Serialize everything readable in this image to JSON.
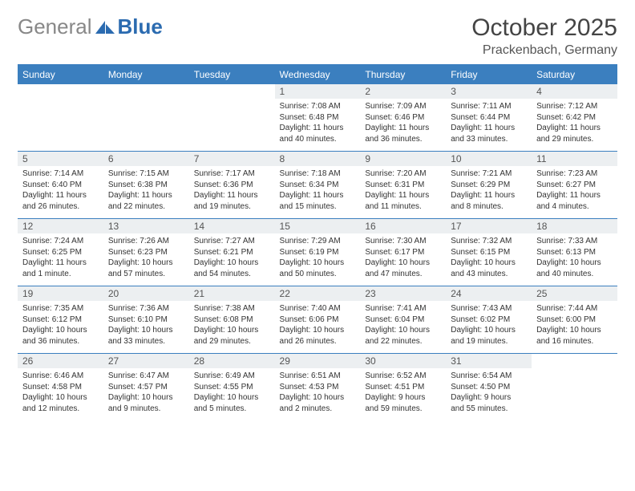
{
  "colors": {
    "header_blue": "#3b7fbf",
    "daynum_bg": "#eceff1",
    "text": "#333333",
    "logo_gray": "#888888",
    "logo_blue": "#2b6bb0"
  },
  "logo": {
    "general": "General",
    "blue": "Blue"
  },
  "title": "October 2025",
  "location": "Prackenbach, Germany",
  "day_headers": [
    "Sunday",
    "Monday",
    "Tuesday",
    "Wednesday",
    "Thursday",
    "Friday",
    "Saturday"
  ],
  "weeks": [
    [
      null,
      null,
      null,
      {
        "n": "1",
        "sunrise": "Sunrise: 7:08 AM",
        "sunset": "Sunset: 6:48 PM",
        "day1": "Daylight: 11 hours",
        "day2": "and 40 minutes."
      },
      {
        "n": "2",
        "sunrise": "Sunrise: 7:09 AM",
        "sunset": "Sunset: 6:46 PM",
        "day1": "Daylight: 11 hours",
        "day2": "and 36 minutes."
      },
      {
        "n": "3",
        "sunrise": "Sunrise: 7:11 AM",
        "sunset": "Sunset: 6:44 PM",
        "day1": "Daylight: 11 hours",
        "day2": "and 33 minutes."
      },
      {
        "n": "4",
        "sunrise": "Sunrise: 7:12 AM",
        "sunset": "Sunset: 6:42 PM",
        "day1": "Daylight: 11 hours",
        "day2": "and 29 minutes."
      }
    ],
    [
      {
        "n": "5",
        "sunrise": "Sunrise: 7:14 AM",
        "sunset": "Sunset: 6:40 PM",
        "day1": "Daylight: 11 hours",
        "day2": "and 26 minutes."
      },
      {
        "n": "6",
        "sunrise": "Sunrise: 7:15 AM",
        "sunset": "Sunset: 6:38 PM",
        "day1": "Daylight: 11 hours",
        "day2": "and 22 minutes."
      },
      {
        "n": "7",
        "sunrise": "Sunrise: 7:17 AM",
        "sunset": "Sunset: 6:36 PM",
        "day1": "Daylight: 11 hours",
        "day2": "and 19 minutes."
      },
      {
        "n": "8",
        "sunrise": "Sunrise: 7:18 AM",
        "sunset": "Sunset: 6:34 PM",
        "day1": "Daylight: 11 hours",
        "day2": "and 15 minutes."
      },
      {
        "n": "9",
        "sunrise": "Sunrise: 7:20 AM",
        "sunset": "Sunset: 6:31 PM",
        "day1": "Daylight: 11 hours",
        "day2": "and 11 minutes."
      },
      {
        "n": "10",
        "sunrise": "Sunrise: 7:21 AM",
        "sunset": "Sunset: 6:29 PM",
        "day1": "Daylight: 11 hours",
        "day2": "and 8 minutes."
      },
      {
        "n": "11",
        "sunrise": "Sunrise: 7:23 AM",
        "sunset": "Sunset: 6:27 PM",
        "day1": "Daylight: 11 hours",
        "day2": "and 4 minutes."
      }
    ],
    [
      {
        "n": "12",
        "sunrise": "Sunrise: 7:24 AM",
        "sunset": "Sunset: 6:25 PM",
        "day1": "Daylight: 11 hours",
        "day2": "and 1 minute."
      },
      {
        "n": "13",
        "sunrise": "Sunrise: 7:26 AM",
        "sunset": "Sunset: 6:23 PM",
        "day1": "Daylight: 10 hours",
        "day2": "and 57 minutes."
      },
      {
        "n": "14",
        "sunrise": "Sunrise: 7:27 AM",
        "sunset": "Sunset: 6:21 PM",
        "day1": "Daylight: 10 hours",
        "day2": "and 54 minutes."
      },
      {
        "n": "15",
        "sunrise": "Sunrise: 7:29 AM",
        "sunset": "Sunset: 6:19 PM",
        "day1": "Daylight: 10 hours",
        "day2": "and 50 minutes."
      },
      {
        "n": "16",
        "sunrise": "Sunrise: 7:30 AM",
        "sunset": "Sunset: 6:17 PM",
        "day1": "Daylight: 10 hours",
        "day2": "and 47 minutes."
      },
      {
        "n": "17",
        "sunrise": "Sunrise: 7:32 AM",
        "sunset": "Sunset: 6:15 PM",
        "day1": "Daylight: 10 hours",
        "day2": "and 43 minutes."
      },
      {
        "n": "18",
        "sunrise": "Sunrise: 7:33 AM",
        "sunset": "Sunset: 6:13 PM",
        "day1": "Daylight: 10 hours",
        "day2": "and 40 minutes."
      }
    ],
    [
      {
        "n": "19",
        "sunrise": "Sunrise: 7:35 AM",
        "sunset": "Sunset: 6:12 PM",
        "day1": "Daylight: 10 hours",
        "day2": "and 36 minutes."
      },
      {
        "n": "20",
        "sunrise": "Sunrise: 7:36 AM",
        "sunset": "Sunset: 6:10 PM",
        "day1": "Daylight: 10 hours",
        "day2": "and 33 minutes."
      },
      {
        "n": "21",
        "sunrise": "Sunrise: 7:38 AM",
        "sunset": "Sunset: 6:08 PM",
        "day1": "Daylight: 10 hours",
        "day2": "and 29 minutes."
      },
      {
        "n": "22",
        "sunrise": "Sunrise: 7:40 AM",
        "sunset": "Sunset: 6:06 PM",
        "day1": "Daylight: 10 hours",
        "day2": "and 26 minutes."
      },
      {
        "n": "23",
        "sunrise": "Sunrise: 7:41 AM",
        "sunset": "Sunset: 6:04 PM",
        "day1": "Daylight: 10 hours",
        "day2": "and 22 minutes."
      },
      {
        "n": "24",
        "sunrise": "Sunrise: 7:43 AM",
        "sunset": "Sunset: 6:02 PM",
        "day1": "Daylight: 10 hours",
        "day2": "and 19 minutes."
      },
      {
        "n": "25",
        "sunrise": "Sunrise: 7:44 AM",
        "sunset": "Sunset: 6:00 PM",
        "day1": "Daylight: 10 hours",
        "day2": "and 16 minutes."
      }
    ],
    [
      {
        "n": "26",
        "sunrise": "Sunrise: 6:46 AM",
        "sunset": "Sunset: 4:58 PM",
        "day1": "Daylight: 10 hours",
        "day2": "and 12 minutes."
      },
      {
        "n": "27",
        "sunrise": "Sunrise: 6:47 AM",
        "sunset": "Sunset: 4:57 PM",
        "day1": "Daylight: 10 hours",
        "day2": "and 9 minutes."
      },
      {
        "n": "28",
        "sunrise": "Sunrise: 6:49 AM",
        "sunset": "Sunset: 4:55 PM",
        "day1": "Daylight: 10 hours",
        "day2": "and 5 minutes."
      },
      {
        "n": "29",
        "sunrise": "Sunrise: 6:51 AM",
        "sunset": "Sunset: 4:53 PM",
        "day1": "Daylight: 10 hours",
        "day2": "and 2 minutes."
      },
      {
        "n": "30",
        "sunrise": "Sunrise: 6:52 AM",
        "sunset": "Sunset: 4:51 PM",
        "day1": "Daylight: 9 hours",
        "day2": "and 59 minutes."
      },
      {
        "n": "31",
        "sunrise": "Sunrise: 6:54 AM",
        "sunset": "Sunset: 4:50 PM",
        "day1": "Daylight: 9 hours",
        "day2": "and 55 minutes."
      },
      null
    ]
  ]
}
